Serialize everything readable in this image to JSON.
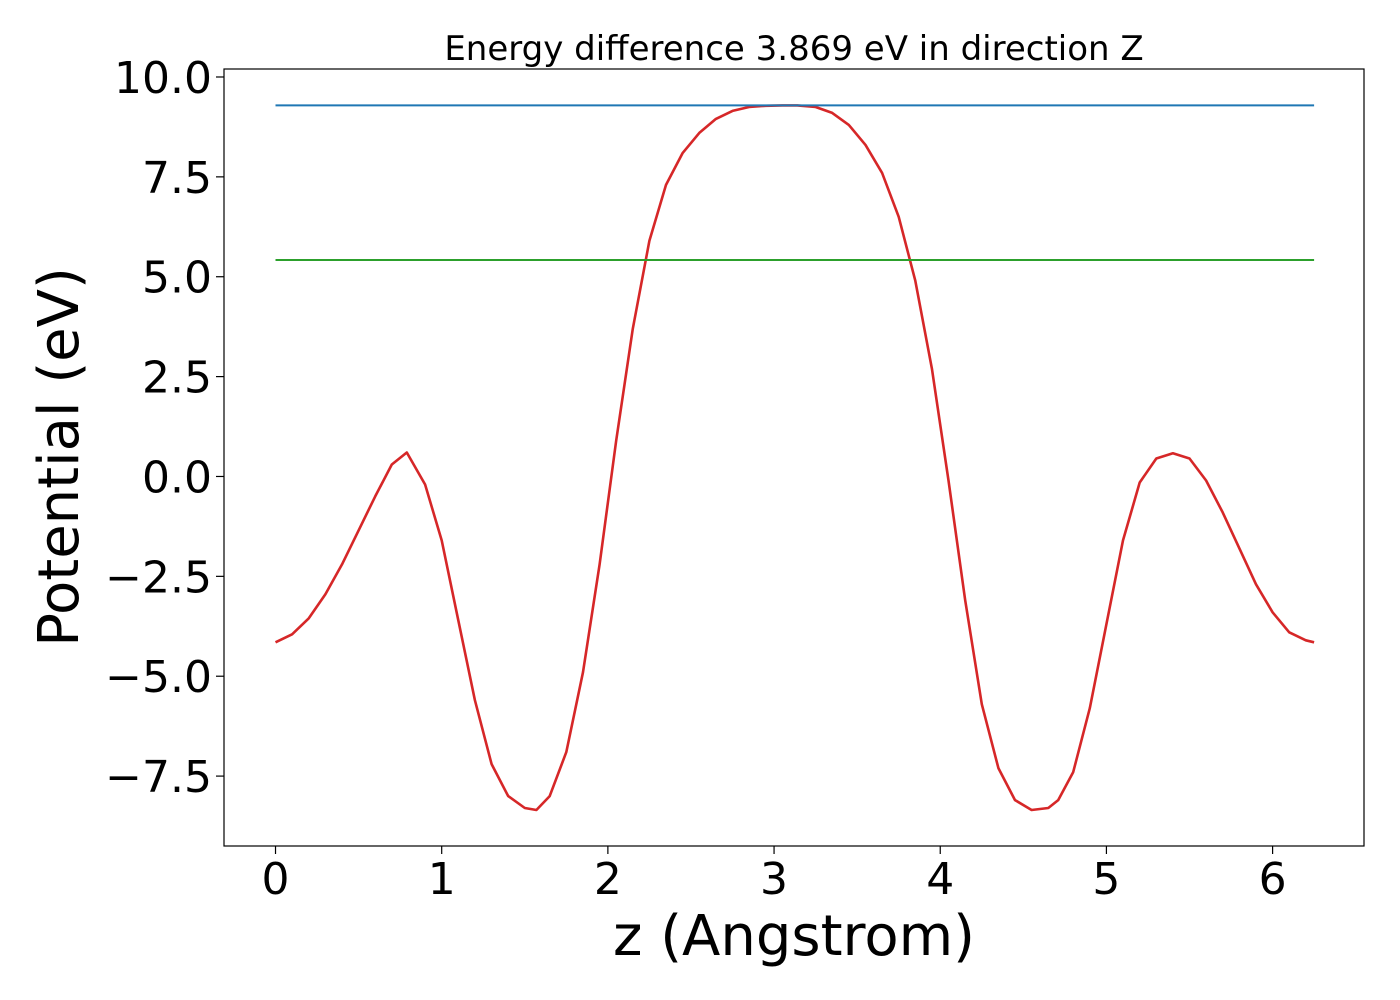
{
  "chart_data": {
    "type": "line",
    "title": "Energy difference 3.869 eV in direction Z",
    "xlabel": "z (Angstrom)",
    "ylabel": "Potential (eV)",
    "xlim": [
      -0.31,
      6.55
    ],
    "ylim": [
      -9.25,
      10.2
    ],
    "xticks": [
      0,
      1,
      2,
      3,
      4,
      5,
      6
    ],
    "xtick_labels": [
      "0",
      "1",
      "2",
      "3",
      "4",
      "5",
      "6"
    ],
    "yticks": [
      -7.5,
      -5.0,
      -2.5,
      0.0,
      2.5,
      5.0,
      7.5,
      10.0
    ],
    "ytick_labels": [
      "−7.5",
      "−5.0",
      "−2.5",
      "0.0",
      "2.5",
      "5.0",
      "7.5",
      "10.0"
    ],
    "grid": false,
    "legend": "none",
    "series": [
      {
        "color": "#d62728",
        "x": [
          0,
          0.1,
          0.2,
          0.3,
          0.4,
          0.5,
          0.6,
          0.7,
          0.79,
          0.9,
          1.0,
          1.1,
          1.2,
          1.3,
          1.4,
          1.5,
          1.57,
          1.65,
          1.75,
          1.85,
          1.95,
          2.05,
          2.15,
          2.25,
          2.35,
          2.45,
          2.55,
          2.65,
          2.75,
          2.85,
          2.95,
          3.05,
          3.14,
          3.25,
          3.35,
          3.45,
          3.55,
          3.65,
          3.75,
          3.85,
          3.95,
          4.05,
          4.15,
          4.25,
          4.35,
          4.45,
          4.55,
          4.65,
          4.71,
          4.8,
          4.9,
          5.0,
          5.1,
          5.2,
          5.3,
          5.4,
          5.5,
          5.6,
          5.7,
          5.8,
          5.9,
          6.0,
          6.1,
          6.2,
          6.25
        ],
        "y": [
          -4.15,
          -3.95,
          -3.55,
          -2.95,
          -2.2,
          -1.35,
          -0.5,
          0.3,
          0.6,
          -0.2,
          -1.6,
          -3.6,
          -5.6,
          -7.2,
          -8.0,
          -8.3,
          -8.35,
          -8.0,
          -6.9,
          -4.9,
          -2.2,
          0.9,
          3.7,
          5.9,
          7.3,
          8.1,
          8.6,
          8.95,
          9.15,
          9.25,
          9.28,
          9.29,
          9.29,
          9.25,
          9.1,
          8.8,
          8.3,
          7.6,
          6.5,
          4.9,
          2.7,
          -0.1,
          -3.1,
          -5.7,
          -7.3,
          -8.1,
          -8.35,
          -8.3,
          -8.1,
          -7.4,
          -5.8,
          -3.7,
          -1.6,
          -0.15,
          0.45,
          0.58,
          0.45,
          -0.1,
          -0.9,
          -1.8,
          -2.7,
          -3.4,
          -3.9,
          -4.1,
          -4.15
        ]
      },
      {
        "color": "#1f77b4",
        "x": [
          0,
          6.25
        ],
        "y": [
          9.29,
          9.29
        ]
      },
      {
        "color": "#2ca02c",
        "x": [
          0,
          6.25
        ],
        "y": [
          5.42,
          5.42
        ]
      }
    ]
  }
}
